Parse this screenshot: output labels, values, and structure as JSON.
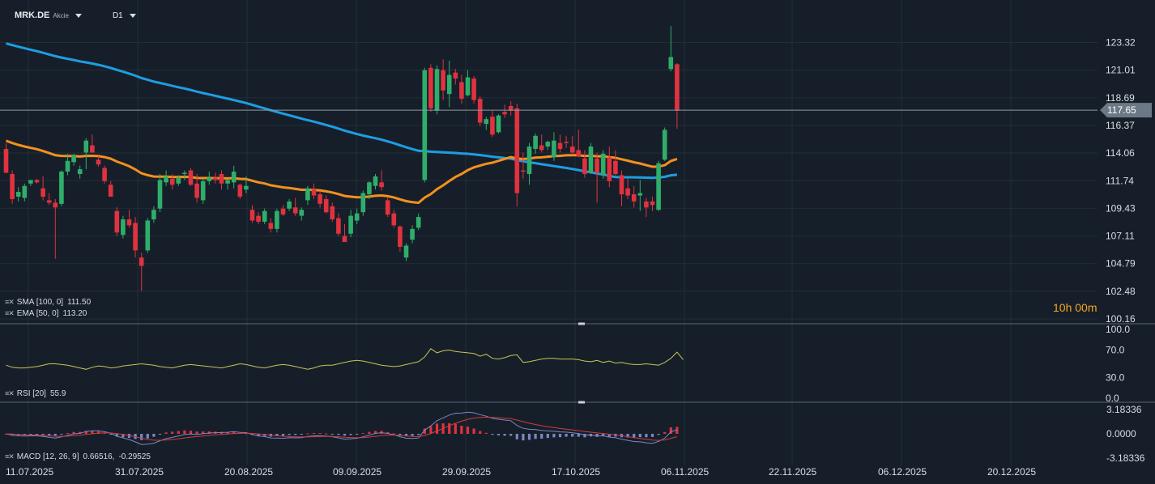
{
  "header": {
    "symbol": "MRK.DE",
    "subtitle": "Akcie",
    "timeframe": "D1"
  },
  "current_price_label": "117.65",
  "timer": "10h 00m",
  "legends": {
    "sma": {
      "label": "SMA [100, 0]",
      "value": "111.50"
    },
    "ema": {
      "label": "EMA [50, 0]",
      "value": "113.20"
    },
    "rsi": {
      "label": "RSI [20]",
      "value": "55.9"
    },
    "macd": {
      "label": "MACD [12, 26, 9]",
      "value": "0.66516,",
      "value2": "-0.29525"
    }
  },
  "colors": {
    "background": "#161f29",
    "up": "#2fae6b",
    "down": "#e0323f",
    "sma": "#1f9de3",
    "ema": "#f5901e",
    "rsi": "#c9c25a",
    "macd_line": "#7b86c9",
    "signal_line": "#d23b3b"
  },
  "chart_data": [
    {
      "type": "candlestick",
      "title": "MRK.DE",
      "timeframe": "D1",
      "yticks": [
        "123.32",
        "121.01",
        "118.69",
        "116.37",
        "114.06",
        "111.74",
        "109.43",
        "107.11",
        "104.79",
        "102.48",
        "100.16"
      ],
      "ylim": [
        100.16,
        123.32
      ],
      "xticks": [
        "11.07.2025",
        "31.07.2025",
        "20.08.2025",
        "09.09.2025",
        "29.09.2025",
        "17.10.2025",
        "06.11.2025",
        "22.11.2025",
        "06.12.2025",
        "20.12.2025"
      ],
      "last_price": 117.65,
      "ohlc": [
        [
          114.4,
          114.9,
          112.4,
          112.4
        ],
        [
          112.3,
          112.6,
          109.8,
          110.2
        ],
        [
          110.4,
          111.2,
          110.0,
          110.8
        ],
        [
          110.3,
          111.5,
          110.0,
          111.3
        ],
        [
          111.5,
          111.8,
          111.3,
          111.8
        ],
        [
          111.8,
          111.9,
          111.5,
          111.6
        ],
        [
          111.1,
          112.1,
          110.1,
          110.4
        ],
        [
          110.1,
          110.7,
          109.7,
          109.9
        ],
        [
          109.9,
          110.2,
          105.2,
          109.5
        ],
        [
          109.8,
          112.6,
          109.6,
          112.5
        ],
        [
          112.5,
          114.0,
          112.2,
          113.4
        ],
        [
          113.3,
          114.0,
          113.0,
          113.9
        ],
        [
          112.3,
          113.0,
          111.9,
          112.7
        ],
        [
          114.1,
          115.3,
          112.7,
          115.1
        ],
        [
          114.7,
          115.6,
          114.1,
          114.1
        ],
        [
          113.5,
          113.8,
          112.9,
          113.1
        ],
        [
          112.8,
          113.0,
          111.5,
          111.7
        ],
        [
          111.4,
          111.7,
          110.4,
          110.4
        ],
        [
          109.2,
          109.5,
          107.1,
          107.4
        ],
        [
          107.2,
          108.8,
          106.9,
          108.5
        ],
        [
          108.5,
          109.3,
          107.8,
          108.0
        ],
        [
          108.2,
          108.7,
          105.3,
          105.9
        ],
        [
          105.3,
          105.7,
          102.5,
          104.6
        ],
        [
          105.9,
          108.6,
          105.7,
          108.4
        ],
        [
          108.5,
          109.6,
          108.2,
          109.3
        ],
        [
          109.4,
          112.3,
          109.1,
          111.8
        ],
        [
          111.6,
          112.6,
          111.3,
          112.1
        ],
        [
          111.9,
          112.3,
          111.0,
          111.4
        ],
        [
          111.5,
          112.2,
          111.3,
          112.0
        ],
        [
          112.3,
          112.6,
          111.8,
          112.4
        ],
        [
          112.6,
          112.8,
          111.3,
          111.4
        ],
        [
          111.5,
          112.3,
          109.9,
          110.3
        ],
        [
          110.1,
          111.9,
          109.8,
          111.7
        ],
        [
          111.7,
          112.5,
          111.4,
          112.0
        ],
        [
          112.0,
          112.4,
          111.5,
          111.8
        ],
        [
          112.3,
          112.6,
          111.0,
          111.5
        ],
        [
          111.5,
          111.9,
          111.0,
          111.8
        ],
        [
          111.6,
          113.0,
          111.1,
          112.5
        ],
        [
          111.4,
          111.5,
          110.2,
          110.4
        ],
        [
          111.0,
          112.1,
          110.7,
          111.3
        ],
        [
          109.3,
          109.7,
          108.2,
          108.4
        ],
        [
          108.8,
          109.1,
          108.1,
          108.3
        ],
        [
          108.3,
          109.4,
          108.1,
          109.2
        ],
        [
          108.2,
          108.6,
          107.4,
          107.7
        ],
        [
          107.7,
          109.4,
          107.4,
          109.2
        ],
        [
          109.4,
          109.7,
          108.8,
          108.9
        ],
        [
          109.4,
          110.2,
          109.2,
          110.0
        ],
        [
          109.5,
          110.3,
          108.8,
          109.0
        ],
        [
          108.8,
          109.5,
          108.4,
          109.3
        ],
        [
          110.1,
          111.3,
          109.7,
          111.1
        ],
        [
          111.0,
          111.5,
          110.2,
          110.5
        ],
        [
          110.6,
          110.9,
          109.5,
          109.8
        ],
        [
          110.2,
          110.5,
          109.0,
          109.1
        ],
        [
          109.6,
          109.9,
          108.3,
          108.5
        ],
        [
          108.6,
          109.0,
          107.1,
          107.3
        ],
        [
          107.1,
          108.1,
          106.6,
          106.6
        ],
        [
          107.3,
          109.3,
          107.0,
          108.8
        ],
        [
          108.4,
          109.4,
          108.1,
          109.0
        ],
        [
          109.1,
          110.9,
          108.8,
          110.7
        ],
        [
          110.6,
          111.7,
          110.2,
          111.6
        ],
        [
          111.3,
          112.3,
          111.0,
          112.1
        ],
        [
          111.6,
          112.6,
          110.9,
          111.2
        ],
        [
          110.1,
          110.3,
          108.7,
          108.9
        ],
        [
          109.0,
          109.3,
          107.8,
          108.0
        ],
        [
          107.9,
          108.0,
          105.8,
          106.2
        ],
        [
          105.3,
          106.5,
          105.0,
          106.3
        ],
        [
          106.8,
          108.0,
          106.5,
          107.7
        ],
        [
          107.8,
          109.0,
          107.6,
          108.7
        ],
        [
          111.8,
          121.2,
          111.6,
          121.0
        ],
        [
          121.2,
          121.5,
          117.5,
          117.8
        ],
        [
          117.6,
          121.4,
          117.3,
          121.1
        ],
        [
          121.0,
          121.9,
          118.5,
          119.3
        ],
        [
          119.0,
          121.8,
          117.9,
          120.6
        ],
        [
          120.8,
          121.1,
          119.8,
          120.3
        ],
        [
          120.0,
          120.6,
          118.2,
          118.6
        ],
        [
          118.9,
          121.0,
          118.8,
          120.4
        ],
        [
          120.3,
          120.5,
          118.2,
          118.5
        ],
        [
          118.6,
          118.8,
          116.3,
          116.6
        ],
        [
          116.5,
          117.1,
          116.0,
          116.9
        ],
        [
          117.1,
          117.6,
          115.4,
          115.6
        ],
        [
          115.8,
          117.3,
          115.7,
          117.2
        ],
        [
          117.5,
          118.1,
          117.0,
          117.3
        ],
        [
          118.0,
          118.4,
          117.2,
          117.6
        ],
        [
          117.8,
          118.2,
          109.6,
          110.7
        ],
        [
          112.6,
          114.1,
          111.9,
          112.5
        ],
        [
          112.3,
          114.9,
          111.4,
          114.6
        ],
        [
          114.4,
          115.7,
          114.0,
          115.5
        ],
        [
          114.7,
          115.6,
          114.1,
          114.3
        ],
        [
          114.6,
          115.1,
          114.3,
          115.0
        ],
        [
          113.7,
          115.8,
          113.4,
          115.1
        ],
        [
          114.9,
          115.6,
          114.1,
          114.4
        ],
        [
          115.0,
          115.5,
          114.5,
          114.9
        ],
        [
          114.6,
          115.5,
          113.9,
          114.1
        ],
        [
          114.3,
          116.0,
          113.7,
          113.8
        ],
        [
          113.6,
          114.3,
          112.0,
          112.3
        ],
        [
          112.4,
          114.9,
          112.3,
          114.6
        ],
        [
          113.6,
          114.1,
          109.9,
          112.4
        ],
        [
          112.2,
          114.3,
          111.9,
          114.0
        ],
        [
          113.7,
          114.6,
          111.2,
          111.7
        ],
        [
          113.4,
          114.3,
          112.2,
          112.3
        ],
        [
          112.2,
          112.6,
          109.6,
          110.6
        ],
        [
          111.1,
          111.9,
          110.2,
          110.5
        ],
        [
          110.6,
          111.3,
          109.5,
          110.0
        ],
        [
          110.5,
          111.8,
          109.2,
          110.7
        ],
        [
          110.0,
          110.3,
          108.7,
          109.5
        ],
        [
          110.0,
          110.4,
          109.2,
          109.7
        ],
        [
          109.3,
          113.4,
          109.2,
          113.2
        ],
        [
          113.5,
          116.2,
          113.4,
          116.0
        ],
        [
          121.1,
          124.7,
          120.9,
          122.1
        ],
        [
          121.5,
          121.6,
          116.1,
          117.6
        ]
      ],
      "sma": {
        "name": "SMA [100, 0]",
        "last": 111.5
      },
      "ema": {
        "name": "EMA [50, 0]",
        "last": 113.2
      }
    },
    {
      "type": "line",
      "name": "RSI [20]",
      "yticks": [
        "100.0",
        "70.0",
        "30.0",
        "0.0"
      ],
      "ylim": [
        0,
        100
      ],
      "last": 55.9,
      "values": [
        48,
        45,
        44,
        44,
        45,
        46,
        48,
        50,
        50,
        49,
        48,
        46,
        44,
        42,
        45,
        47,
        46,
        44,
        45,
        47,
        48,
        49,
        50,
        49,
        48,
        46,
        45,
        44,
        46,
        48,
        49,
        48,
        47,
        46,
        45,
        44,
        46,
        48,
        50,
        49,
        47,
        45,
        44,
        46,
        48,
        49,
        48,
        46,
        44,
        42,
        44,
        47,
        48,
        48,
        50,
        52,
        54,
        55,
        54,
        52,
        50,
        48,
        47,
        46,
        47,
        49,
        51,
        53,
        60,
        72,
        66,
        69,
        70,
        68,
        67,
        66,
        65,
        61,
        64,
        58,
        57,
        59,
        62,
        63,
        52,
        53,
        55,
        57,
        58,
        58,
        57,
        57,
        57,
        56,
        54,
        53,
        55,
        52,
        54,
        51,
        52,
        50,
        49,
        49,
        50,
        49,
        48,
        52,
        58,
        67,
        56
      ]
    },
    {
      "type": "bar",
      "name": "MACD [12, 26, 9]",
      "yticks": [
        "3.18336",
        "0.0000",
        "-3.18336"
      ],
      "ylim": [
        -3.18336,
        3.18336
      ],
      "macd_last": 0.66516,
      "signal_last": -0.29525
    }
  ]
}
